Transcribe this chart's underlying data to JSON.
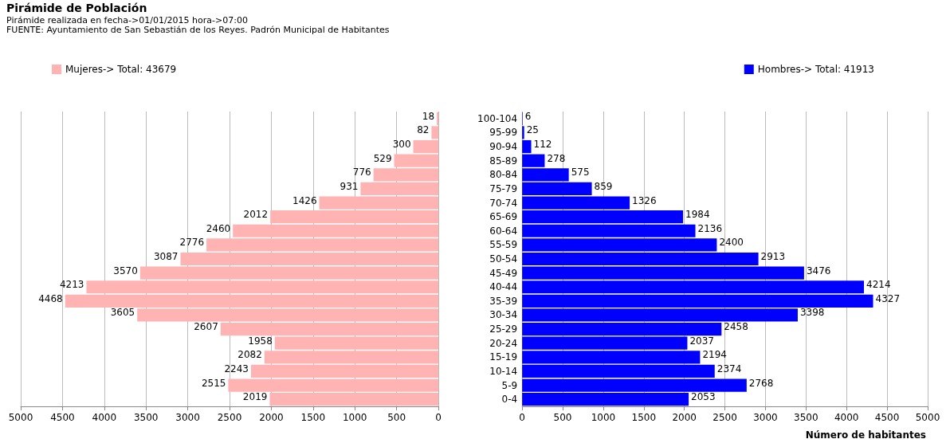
{
  "chart_data": [
    {
      "type": "bar",
      "orientation": "horizontal",
      "title": "Pirámide de Población",
      "subtitle": "Pirámide realizada en fecha->01/01/2015 hora->07:00",
      "annotations": [
        "FUENTE: Ayuntamiento de San Sebastián de los Reyes. Padrón Municipal de Habitantes"
      ],
      "categories": [
        null,
        null,
        null,
        null,
        null,
        null,
        null,
        null,
        null,
        null,
        null,
        null,
        null,
        null,
        null,
        null,
        null,
        null,
        null,
        null,
        null
      ],
      "series": [
        {
          "name": "Mujeres-> Total: 43679",
          "color": "#ffb3b3",
          "values": [
            18,
            82,
            300,
            529,
            776,
            931,
            1426,
            2012,
            2460,
            2776,
            3087,
            3570,
            4213,
            4468,
            3605,
            2607,
            1958,
            2082,
            2243,
            2515,
            2019
          ]
        }
      ],
      "xlim": [
        5000,
        0
      ],
      "xticks": [
        5000,
        4500,
        4000,
        3500,
        3000,
        2500,
        2000,
        1500,
        1000,
        500,
        0
      ],
      "grid": "x",
      "legend": "top left",
      "data_labels": true,
      "tick_labels": "x"
    },
    {
      "type": "bar",
      "orientation": "horizontal",
      "xlabel": "Número de habitantes",
      "categories": [
        "100-104",
        "95-99",
        "90-94",
        "85-89",
        "80-84",
        "75-79",
        "70-74",
        "65-69",
        "60-64",
        "55-59",
        "50-54",
        "45-49",
        "40-44",
        "35-39",
        "30-34",
        "25-29",
        "20-24",
        "15-19",
        "10-14",
        "5-9",
        "0-4"
      ],
      "series": [
        {
          "name": "Hombres-> Total: 41913",
          "color": "#0000ff",
          "values": [
            6,
            25,
            112,
            278,
            575,
            859,
            1326,
            1984,
            2136,
            2400,
            2913,
            3476,
            4214,
            4327,
            3398,
            2458,
            2037,
            2194,
            2374,
            2768,
            2053
          ]
        }
      ],
      "xlim": [
        0,
        5000
      ],
      "xticks": [
        0,
        500,
        1000,
        1500,
        2000,
        2500,
        3000,
        3500,
        4000,
        4500,
        5000
      ],
      "grid": "x",
      "legend": "top right",
      "data_labels": true
    }
  ]
}
